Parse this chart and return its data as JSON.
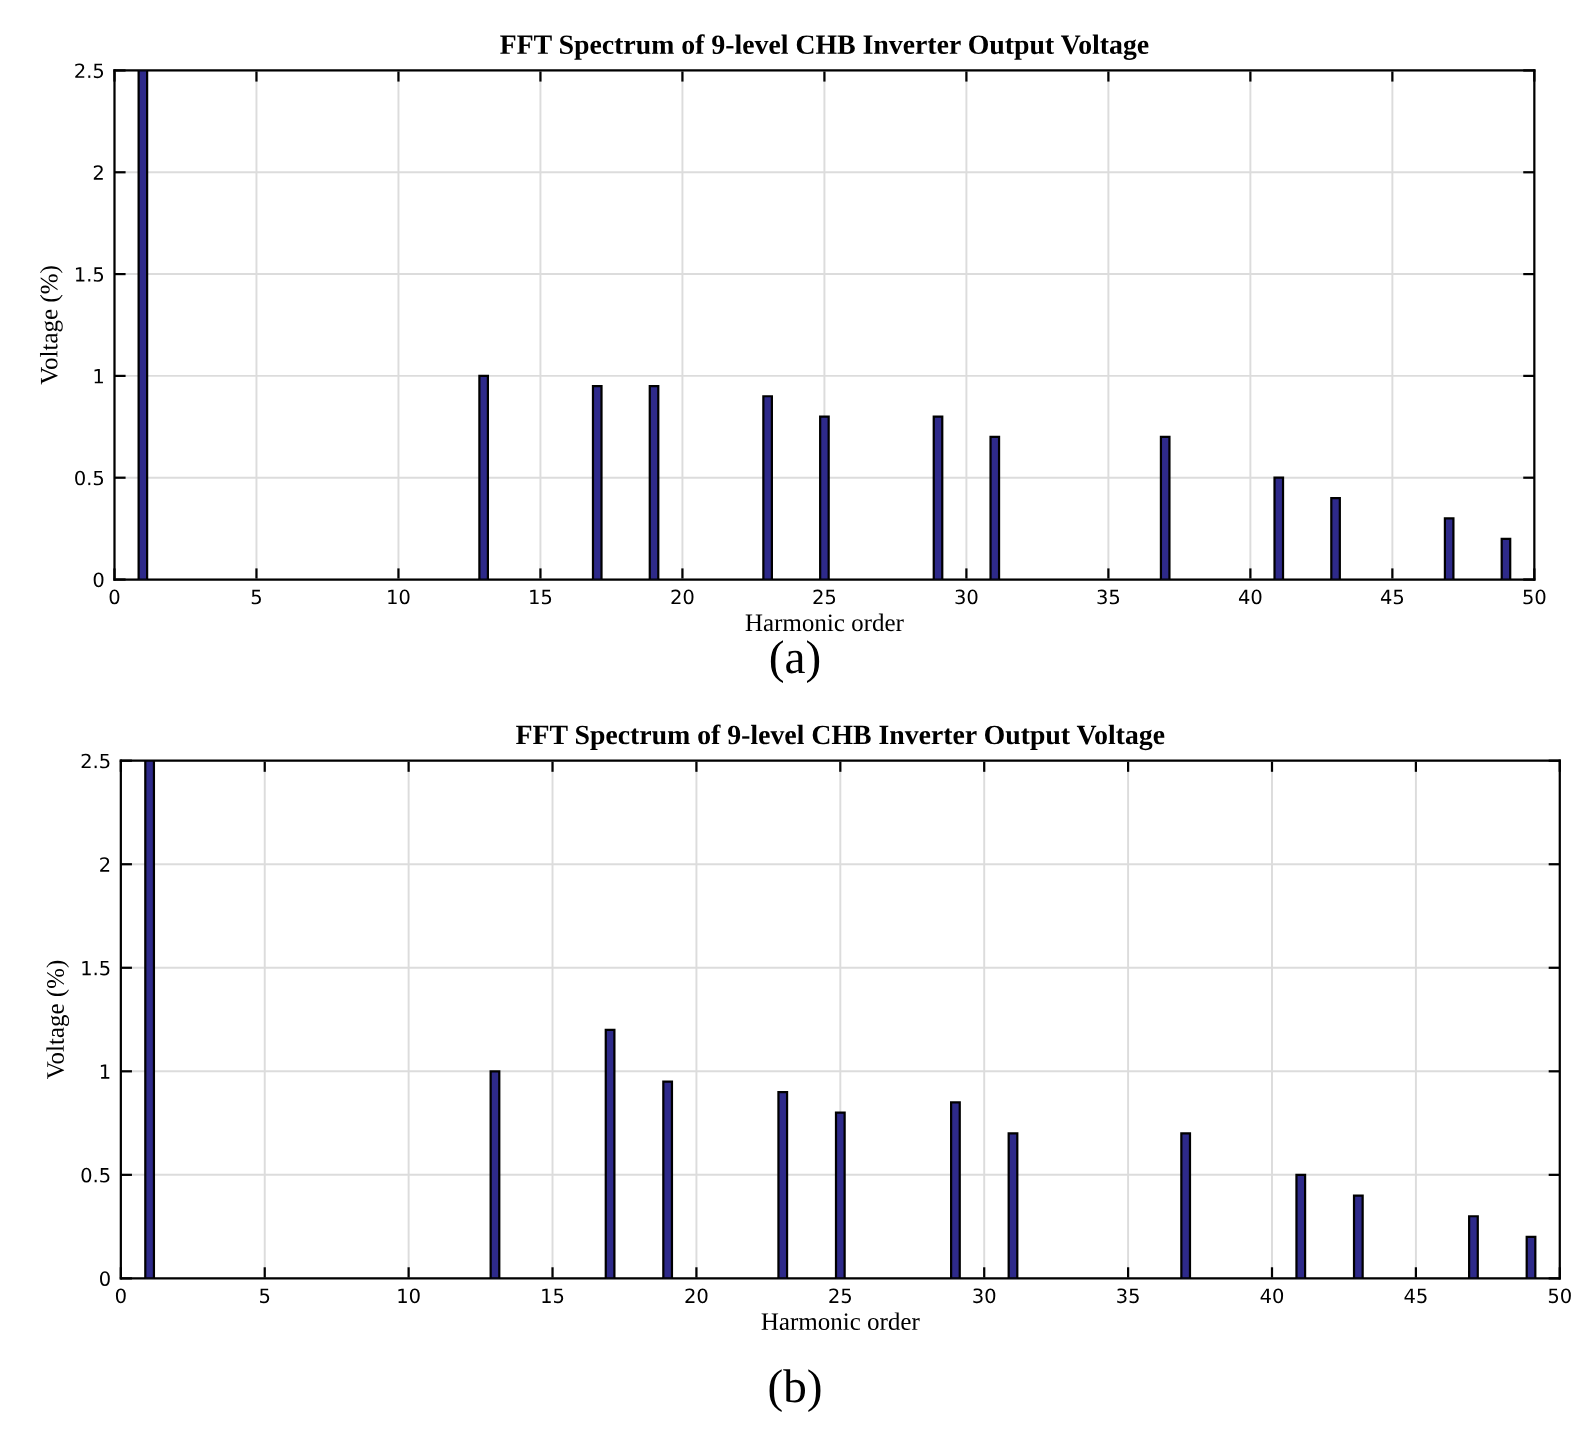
{
  "chart_data": [
    {
      "type": "bar",
      "title": "FFT Spectrum of 9-level CHB Inverter Output Voltage",
      "xlabel": "Harmonic order",
      "ylabel": "Voltage (%)",
      "annotations": [
        "(a)"
      ],
      "x": [
        1,
        13,
        17,
        19,
        23,
        25,
        29,
        31,
        37,
        41,
        43,
        47,
        49
      ],
      "series": [
        {
          "color": "#2e2a8a",
          "values": [
            2.5,
            1.0,
            0.95,
            0.95,
            0.9,
            0.8,
            0.8,
            0.7,
            0.7,
            0.5,
            0.4,
            0.3,
            0.2
          ]
        }
      ],
      "xlim": [
        0,
        50
      ],
      "xticks": [
        0,
        5,
        10,
        15,
        20,
        25,
        30,
        35,
        40,
        45,
        50
      ],
      "ylim": [
        0,
        2.5
      ],
      "yticks": [
        0,
        0.5,
        1,
        1.5,
        2,
        2.5
      ],
      "grid": true
    },
    {
      "type": "bar",
      "title": "FFT Spectrum of 9-level CHB Inverter Output Voltage",
      "xlabel": "Harmonic order",
      "ylabel": "Voltage (%)",
      "annotations": [
        "(b)"
      ],
      "x": [
        1,
        13,
        17,
        19,
        23,
        25,
        29,
        31,
        37,
        41,
        43,
        47,
        49
      ],
      "series": [
        {
          "color": "#2e2a8a",
          "values": [
            2.5,
            1.0,
            1.2,
            0.95,
            0.9,
            0.8,
            0.85,
            0.7,
            0.7,
            0.5,
            0.4,
            0.3,
            0.2
          ]
        }
      ],
      "xlim": [
        0,
        50
      ],
      "xticks": [
        0,
        5,
        10,
        15,
        20,
        25,
        30,
        35,
        40,
        45,
        50
      ],
      "ylim": [
        0,
        2.5
      ],
      "yticks": [
        0,
        0.5,
        1,
        1.5,
        2,
        2.5
      ],
      "grid": true
    }
  ]
}
